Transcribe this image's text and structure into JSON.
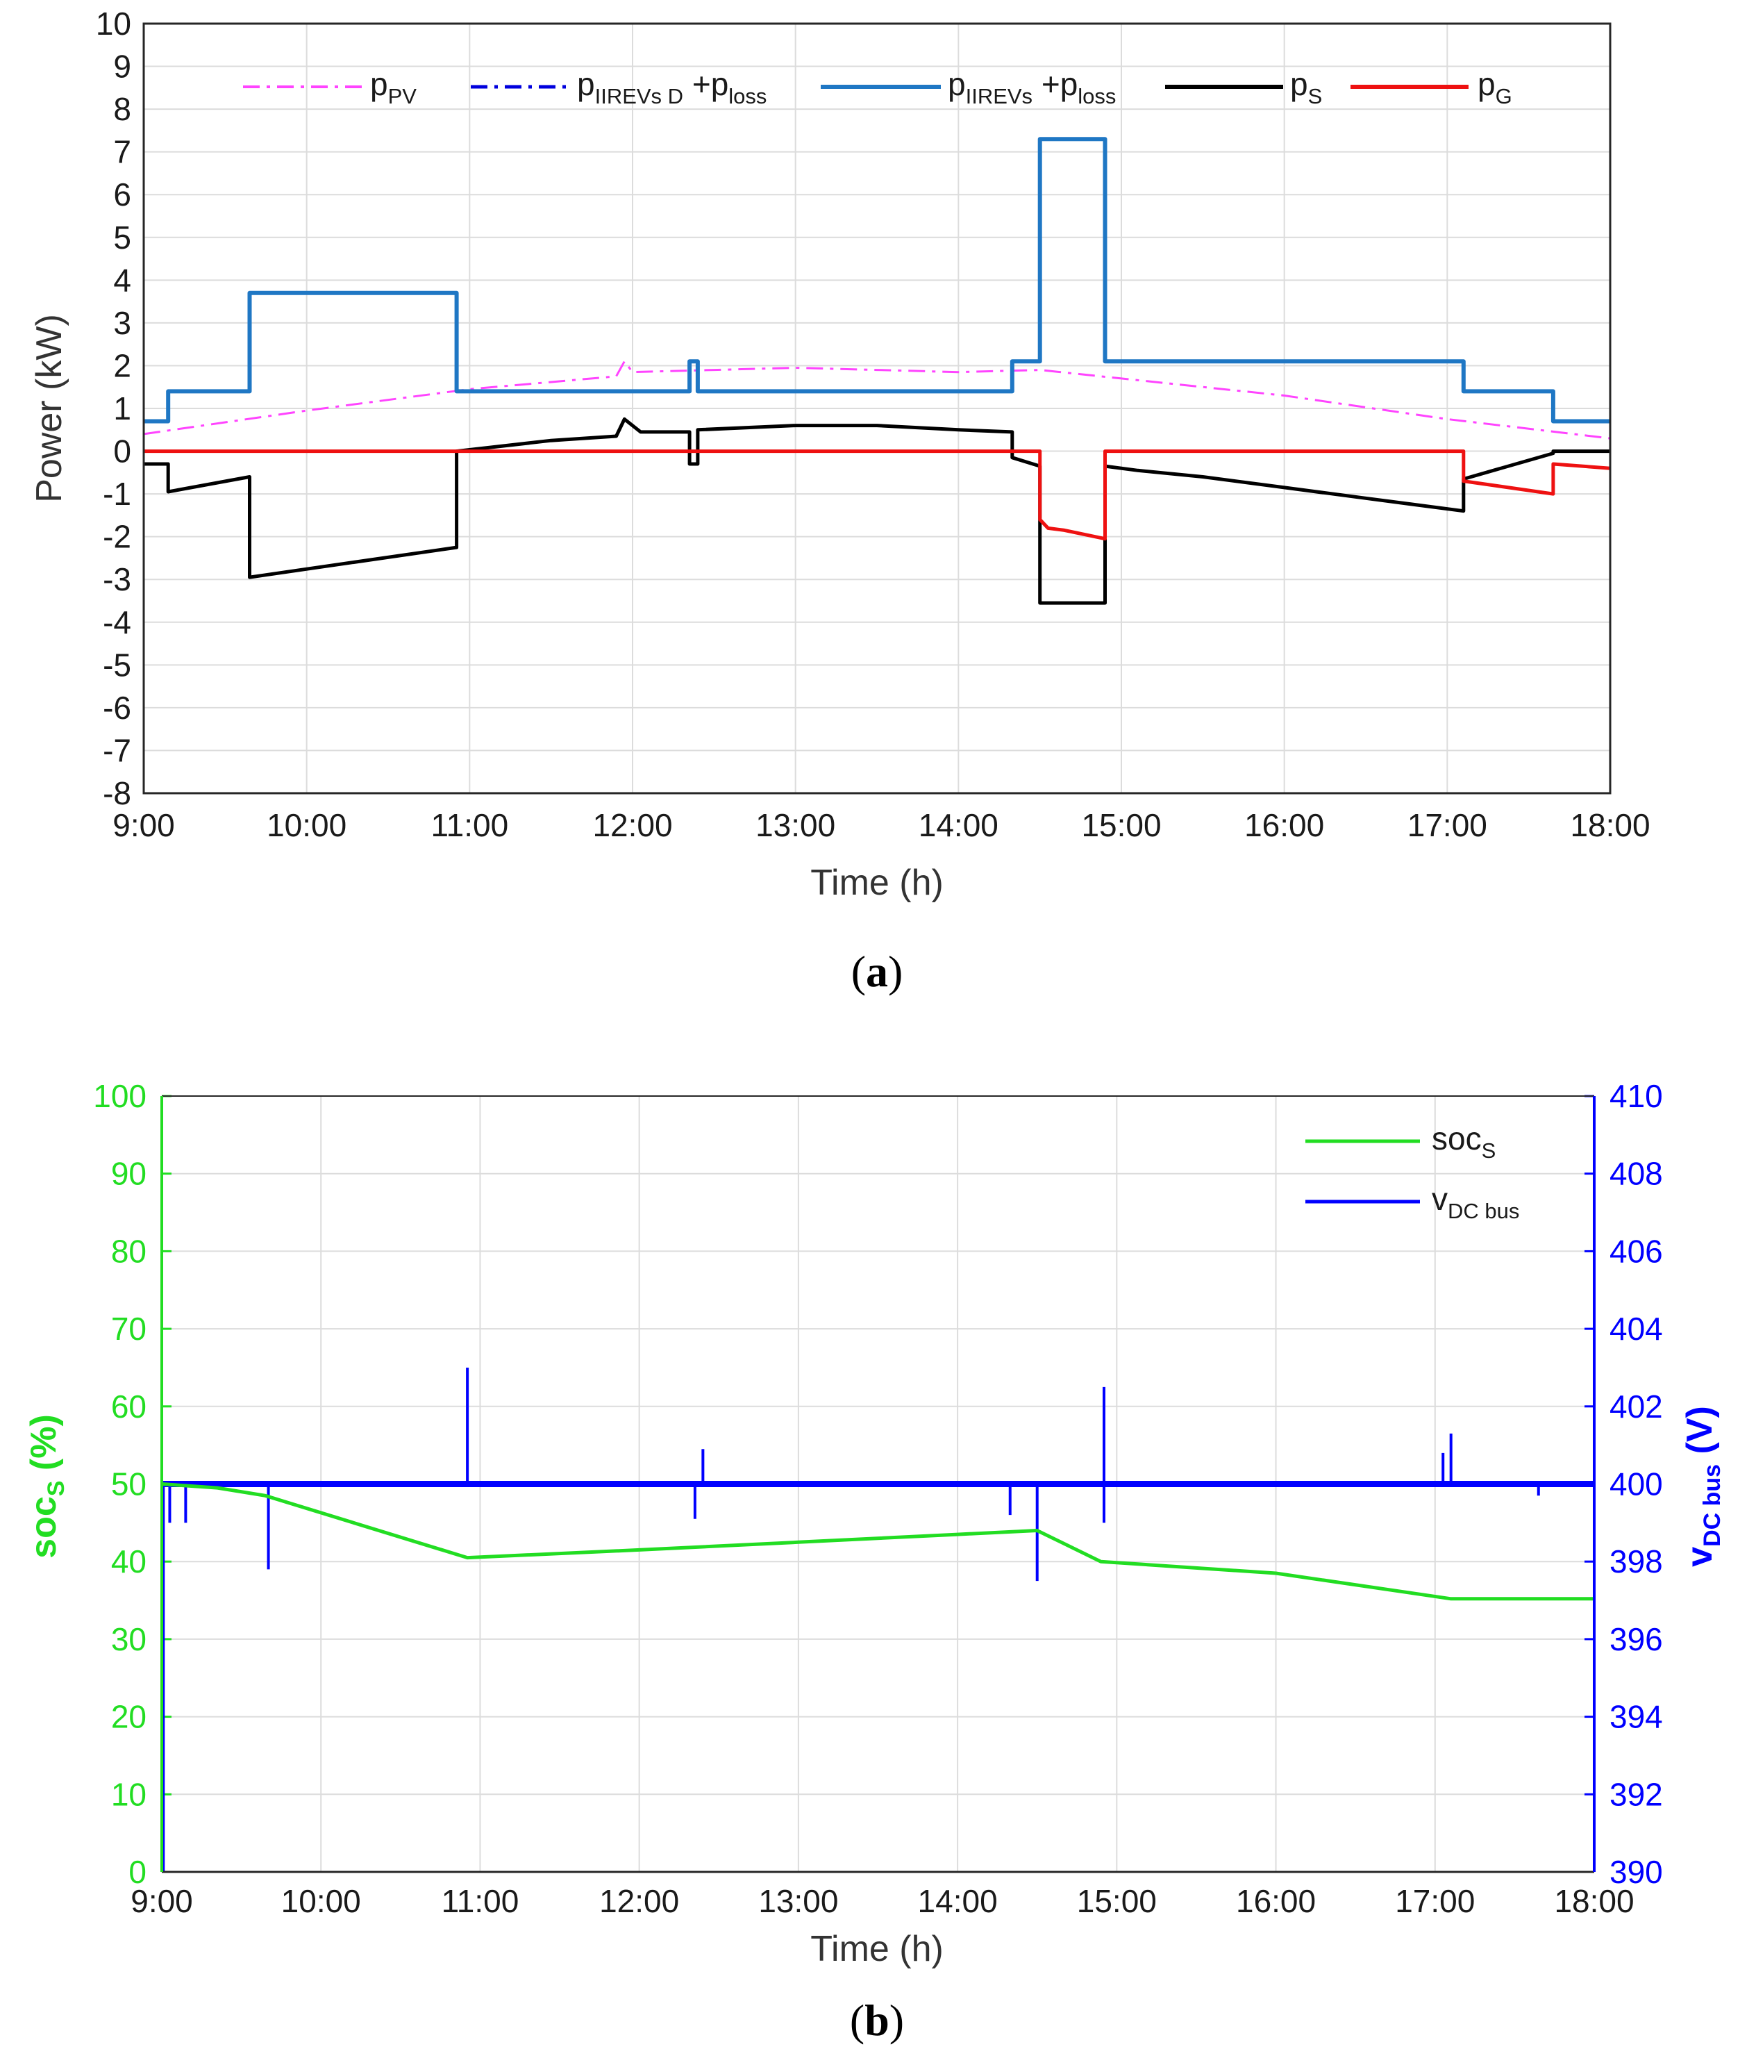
{
  "chart_data": [
    {
      "type": "line",
      "caption": "a",
      "xlabel": "Time (h)",
      "ylabel": "Power (kW)",
      "xlim": [
        9,
        18
      ],
      "ylim": [
        -8,
        10
      ],
      "x_ticks": [
        "9:00",
        "10:00",
        "11:00",
        "12:00",
        "13:00",
        "14:00",
        "15:00",
        "16:00",
        "17:00",
        "18:00"
      ],
      "y_ticks": [
        "10",
        "9",
        "8",
        "7",
        "6",
        "5",
        "4",
        "3",
        "2",
        "1",
        "0",
        "-1",
        "-2",
        "-3",
        "-4",
        "-5",
        "-6",
        "-7",
        "-8"
      ],
      "grid": true,
      "legend_position": "top",
      "series": [
        {
          "name": "p_PV",
          "label_main": "p",
          "label_sub": "PV",
          "color": "#ff44ff",
          "style": "dashdot",
          "x": [
            9.0,
            10.0,
            11.0,
            11.9,
            11.95,
            12.0,
            12.5,
            13.0,
            13.5,
            14.0,
            14.5,
            15.0,
            16.0,
            17.0,
            18.0
          ],
          "values": [
            0.4,
            0.95,
            1.45,
            1.75,
            2.1,
            1.85,
            1.9,
            1.95,
            1.9,
            1.85,
            1.9,
            1.7,
            1.3,
            0.75,
            0.3
          ]
        },
        {
          "name": "p_IIREVs D + p_loss",
          "label_main": "p",
          "label_sub": "IIREVs D",
          "label_main2": " +p",
          "label_sub2": "loss",
          "color": "#0000dd",
          "style": "dashdot",
          "x": [
            9.0,
            9.05,
            9.15,
            9.15,
            9.65,
            9.65,
            10.92,
            10.92,
            12.35,
            12.35,
            12.4,
            12.4,
            14.33,
            14.33,
            14.5,
            14.5,
            14.9,
            14.9,
            17.1,
            17.1,
            17.65,
            17.65,
            18.0
          ],
          "values": [
            0.7,
            0.7,
            0.7,
            1.4,
            1.4,
            3.7,
            3.7,
            1.4,
            1.4,
            2.1,
            2.1,
            1.4,
            1.4,
            2.1,
            2.1,
            7.3,
            7.3,
            2.1,
            2.1,
            1.4,
            1.4,
            0.7,
            0.7
          ]
        },
        {
          "name": "p_IIREVs + p_loss",
          "label_main": "p",
          "label_sub": "IIREVs",
          "label_main2": " +p",
          "label_sub2": "loss",
          "color": "#1f77c4",
          "style": "solid",
          "x": [
            9.0,
            9.05,
            9.15,
            9.15,
            9.65,
            9.65,
            10.92,
            10.92,
            12.35,
            12.35,
            12.4,
            12.4,
            14.33,
            14.33,
            14.5,
            14.5,
            14.9,
            14.9,
            17.1,
            17.1,
            17.65,
            17.65,
            18.0
          ],
          "values": [
            0.7,
            0.7,
            0.7,
            1.4,
            1.4,
            3.7,
            3.7,
            1.4,
            1.4,
            2.1,
            2.1,
            1.4,
            1.4,
            2.1,
            2.1,
            7.3,
            7.3,
            2.1,
            2.1,
            1.4,
            1.4,
            0.7,
            0.7
          ]
        },
        {
          "name": "p_S",
          "label_main": "p",
          "label_sub": "S",
          "color": "#000000",
          "style": "solid",
          "x": [
            9.0,
            9.15,
            9.15,
            9.65,
            9.65,
            10.92,
            10.92,
            11.5,
            11.9,
            11.95,
            12.05,
            12.35,
            12.35,
            12.4,
            12.4,
            13.0,
            13.5,
            14.0,
            14.33,
            14.33,
            14.5,
            14.5,
            14.9,
            14.9,
            15.1,
            15.5,
            16.0,
            16.5,
            17.1,
            17.1,
            17.65,
            17.65,
            18.0
          ],
          "values": [
            -0.3,
            -0.3,
            -0.95,
            -0.6,
            -2.95,
            -2.25,
            0.0,
            0.25,
            0.35,
            0.75,
            0.45,
            0.45,
            -0.3,
            -0.3,
            0.5,
            0.6,
            0.6,
            0.5,
            0.45,
            -0.15,
            -0.35,
            -3.55,
            -3.55,
            -0.35,
            -0.45,
            -0.6,
            -0.85,
            -1.1,
            -1.4,
            -0.65,
            -0.05,
            0.0,
            0.0
          ]
        },
        {
          "name": "p_G",
          "label_main": "p",
          "label_sub": "G",
          "color": "#ee1111",
          "style": "solid",
          "x": [
            9.0,
            14.5,
            14.5,
            14.55,
            14.65,
            14.9,
            14.9,
            17.1,
            17.1,
            17.65,
            17.65,
            18.0
          ],
          "values": [
            0.0,
            0.0,
            -1.6,
            -1.8,
            -1.85,
            -2.05,
            0.0,
            0.0,
            -0.7,
            -1.0,
            -0.3,
            -0.4
          ]
        }
      ]
    },
    {
      "type": "line",
      "caption": "b",
      "xlabel": "Time (h)",
      "ylabel_left": "soc_S (%)",
      "ylabel_left_main": "soc",
      "ylabel_left_sub": "S",
      "ylabel_left_unit": " (%)",
      "ylabel_right": "v_DC bus (V)",
      "ylabel_right_main": "v",
      "ylabel_right_sub": "DC bus",
      "ylabel_right_unit": " (V)",
      "xlim": [
        9,
        18
      ],
      "ylim_left": [
        0,
        100
      ],
      "ylim_right": [
        390,
        410
      ],
      "x_ticks": [
        "9:00",
        "10:00",
        "11:00",
        "12:00",
        "13:00",
        "14:00",
        "15:00",
        "16:00",
        "17:00",
        "18:00"
      ],
      "y_ticks_left": [
        "100",
        "90",
        "80",
        "70",
        "60",
        "50",
        "40",
        "30",
        "20",
        "10",
        "0"
      ],
      "y_ticks_right": [
        "410",
        "408",
        "406",
        "404",
        "402",
        "400",
        "398",
        "396",
        "394",
        "392",
        "390"
      ],
      "left_axis_color": "#22dd22",
      "right_axis_color": "#0000ff",
      "grid": true,
      "legend_position": "top-right",
      "series": [
        {
          "name": "soc_S",
          "label_main": "soc",
          "label_sub": "S",
          "axis": "left",
          "color": "#22dd22",
          "x": [
            9.0,
            9.35,
            9.65,
            10.92,
            12.0,
            13.0,
            14.0,
            14.5,
            14.9,
            16.0,
            17.1,
            18.0
          ],
          "values": [
            50,
            49.5,
            48.5,
            40.5,
            41.5,
            42.5,
            43.5,
            44,
            40,
            38.5,
            35.2,
            35.2
          ]
        },
        {
          "name": "v_DC bus",
          "label_main": "v",
          "label_sub": "DC bus",
          "axis": "right",
          "color": "#0000ff",
          "baseline": 400,
          "x": [
            9.0,
            18.0
          ],
          "values": [
            400,
            400
          ],
          "spikes": [
            {
              "x": 9.01,
              "value": 390
            },
            {
              "x": 9.05,
              "value": 399.0
            },
            {
              "x": 9.15,
              "value": 399.0
            },
            {
              "x": 9.67,
              "value": 397.8
            },
            {
              "x": 10.92,
              "value": 403
            },
            {
              "x": 12.35,
              "value": 399.1
            },
            {
              "x": 12.4,
              "value": 400.9
            },
            {
              "x": 14.33,
              "value": 399.2
            },
            {
              "x": 14.5,
              "value": 397.5
            },
            {
              "x": 14.92,
              "value": 402.5
            },
            {
              "x": 14.92,
              "value": 399.0
            },
            {
              "x": 17.05,
              "value": 400.8
            },
            {
              "x": 17.1,
              "value": 401.3
            },
            {
              "x": 17.65,
              "value": 399.7
            }
          ]
        }
      ]
    }
  ]
}
